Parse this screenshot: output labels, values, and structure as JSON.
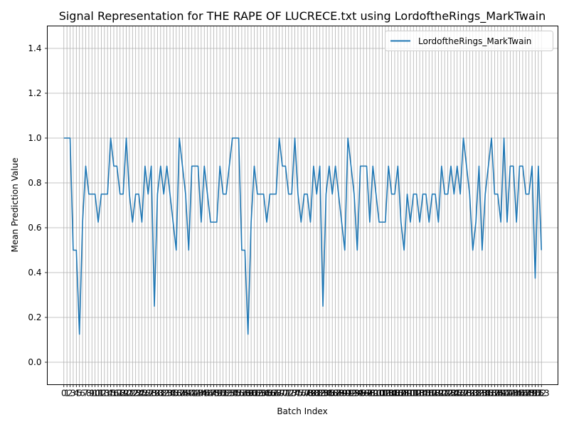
{
  "chart_data": {
    "type": "line",
    "title": "Signal Representation for THE RAPE OF LUCRECE.txt using LordoftheRings_MarkTwain",
    "xlabel": "Batch Index",
    "ylabel": "Mean Prediction Value",
    "ylim": [
      -0.1,
      1.5
    ],
    "xlim": [
      -5.3,
      158.3
    ],
    "grid": true,
    "legend_placement": "top-right",
    "yticks": [
      0.0,
      0.2,
      0.4,
      0.6,
      0.8,
      1.0,
      1.2,
      1.4
    ],
    "ytick_labels": [
      "0.0",
      "0.2",
      "0.4",
      "0.6",
      "0.8",
      "1.0",
      "1.2",
      "1.4"
    ],
    "x": [
      0,
      1,
      2,
      3,
      4,
      5,
      6,
      7,
      8,
      9,
      10,
      11,
      12,
      13,
      14,
      15,
      16,
      17,
      18,
      19,
      20,
      21,
      22,
      23,
      24,
      25,
      26,
      27,
      28,
      29,
      30,
      31,
      32,
      33,
      34,
      35,
      36,
      37,
      38,
      39,
      40,
      41,
      42,
      43,
      44,
      45,
      46,
      47,
      48,
      49,
      50,
      51,
      52,
      53,
      54,
      55,
      56,
      57,
      58,
      59,
      60,
      61,
      62,
      63,
      64,
      65,
      66,
      67,
      68,
      69,
      70,
      71,
      72,
      73,
      74,
      75,
      76,
      77,
      78,
      79,
      80,
      81,
      82,
      83,
      84,
      85,
      86,
      87,
      88,
      89,
      90,
      91,
      92,
      93,
      94,
      95,
      96,
      97,
      98,
      99,
      100,
      101,
      102,
      103,
      104,
      105,
      106,
      107,
      108,
      109,
      110,
      111,
      112,
      113,
      114,
      115,
      116,
      117,
      118,
      119,
      120,
      121,
      122,
      123,
      124,
      125,
      126,
      127,
      128,
      129,
      130,
      131,
      132,
      133,
      134,
      135,
      136,
      137,
      138,
      139,
      140,
      141,
      142,
      143,
      144,
      145,
      146,
      147,
      148,
      149,
      150,
      151,
      152,
      153
    ],
    "series": [
      {
        "name": "LordoftheRings_MarkTwain",
        "color": "#1f77b4",
        "values": [
          1.0,
          1.0,
          1.0,
          0.5,
          0.5,
          0.125,
          0.625,
          0.875,
          0.75,
          0.75,
          0.75,
          0.625,
          0.75,
          0.75,
          0.75,
          1.0,
          0.875,
          0.875,
          0.75,
          0.75,
          1.0,
          0.75,
          0.625,
          0.75,
          0.75,
          0.625,
          0.875,
          0.75,
          0.875,
          0.25,
          0.75,
          0.875,
          0.75,
          0.875,
          0.75,
          0.625,
          0.5,
          1.0,
          0.875,
          0.75,
          0.5,
          0.875,
          0.875,
          0.875,
          0.625,
          0.875,
          0.75,
          0.625,
          0.625,
          0.625,
          0.875,
          0.75,
          0.75,
          0.875,
          1.0,
          1.0,
          1.0,
          0.5,
          0.5,
          0.125,
          0.625,
          0.875,
          0.75,
          0.75,
          0.75,
          0.625,
          0.75,
          0.75,
          0.75,
          1.0,
          0.875,
          0.875,
          0.75,
          0.75,
          1.0,
          0.75,
          0.625,
          0.75,
          0.75,
          0.625,
          0.875,
          0.75,
          0.875,
          0.25,
          0.75,
          0.875,
          0.75,
          0.875,
          0.75,
          0.625,
          0.5,
          1.0,
          0.875,
          0.75,
          0.5,
          0.875,
          0.875,
          0.875,
          0.625,
          0.875,
          0.75,
          0.625,
          0.625,
          0.625,
          0.875,
          0.75,
          0.75,
          0.875,
          0.625,
          0.5,
          0.75,
          0.625,
          0.75,
          0.75,
          0.625,
          0.75,
          0.75,
          0.625,
          0.75,
          0.75,
          0.625,
          0.875,
          0.75,
          0.75,
          0.875,
          0.75,
          0.875,
          0.75,
          1.0,
          0.875,
          0.75,
          0.5,
          0.625,
          0.875,
          0.5,
          0.75,
          0.875,
          1.0,
          0.75,
          0.75,
          0.625,
          1.0,
          0.625,
          0.875,
          0.875,
          0.625,
          0.875,
          0.875,
          0.75,
          0.75,
          0.875,
          0.375,
          0.875,
          0.5
        ]
      }
    ]
  }
}
